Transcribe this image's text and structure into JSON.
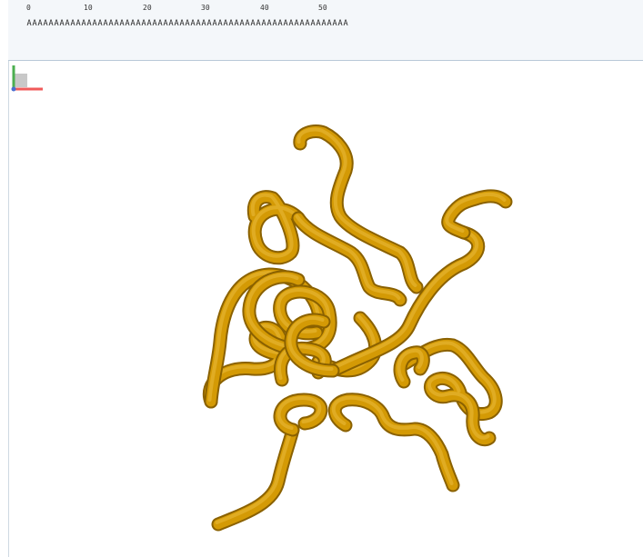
{
  "sequence_panel": {
    "ruler_ticks": [
      "0",
      "10",
      "20",
      "30",
      "40",
      "50"
    ],
    "residues": "AAAAAAAAAAAAAAAAAAAAAAAAAAAAAAAAAAAAAAAAAAAAAAAAAAAAAAAAAAA"
  },
  "viewer": {
    "representation": "cartoon-tube",
    "tube_color": "#d49a05",
    "background": "#ffffff"
  },
  "axes_indicator": {
    "x_color": "#f05a5a",
    "y_color": "#4caf50",
    "z_color": "#9a9a9a"
  },
  "icons": [
    "axes-indicator-icon"
  ]
}
